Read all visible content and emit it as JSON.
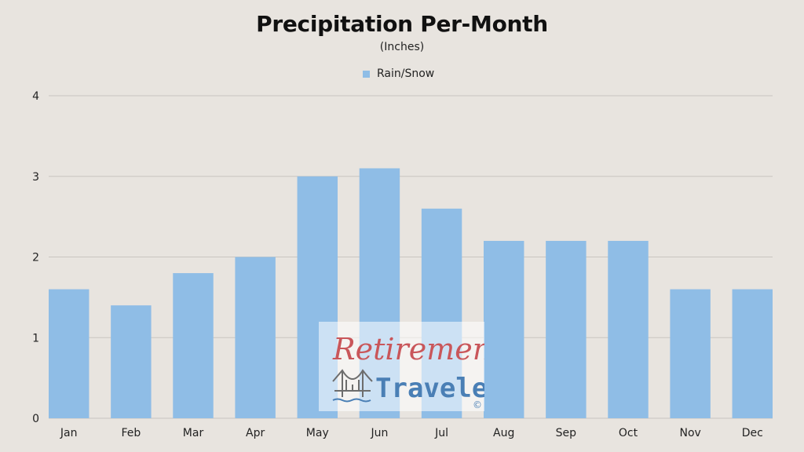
{
  "chart_data": {
    "type": "bar",
    "title": "Precipitation Per-Month",
    "subtitle": "(Inches)",
    "xlabel": "",
    "ylabel": "",
    "categories": [
      "Jan",
      "Feb",
      "Mar",
      "Apr",
      "May",
      "Jun",
      "Jul",
      "Aug",
      "Sep",
      "Oct",
      "Nov",
      "Dec"
    ],
    "series": [
      {
        "name": "Rain/Snow",
        "values": [
          1.6,
          1.4,
          1.8,
          2.0,
          3.0,
          3.1,
          2.6,
          2.2,
          2.2,
          2.2,
          1.6,
          1.6
        ],
        "color": "#8fbde6"
      }
    ],
    "ylim": [
      0,
      4
    ],
    "yticks": [
      "0",
      "1",
      "2",
      "3",
      "4"
    ],
    "grid": true,
    "legend_position": "top-center"
  },
  "watermark": {
    "line1": "Retirement",
    "line2": "Travelers",
    "mark": "©",
    "line1_color": "#c9565a",
    "line2_color": "#4a7fb5",
    "icon": "bridge-icon"
  },
  "colors": {
    "background": "#e8e4df",
    "gridline": "#c9c5c0",
    "text": "#222222"
  }
}
